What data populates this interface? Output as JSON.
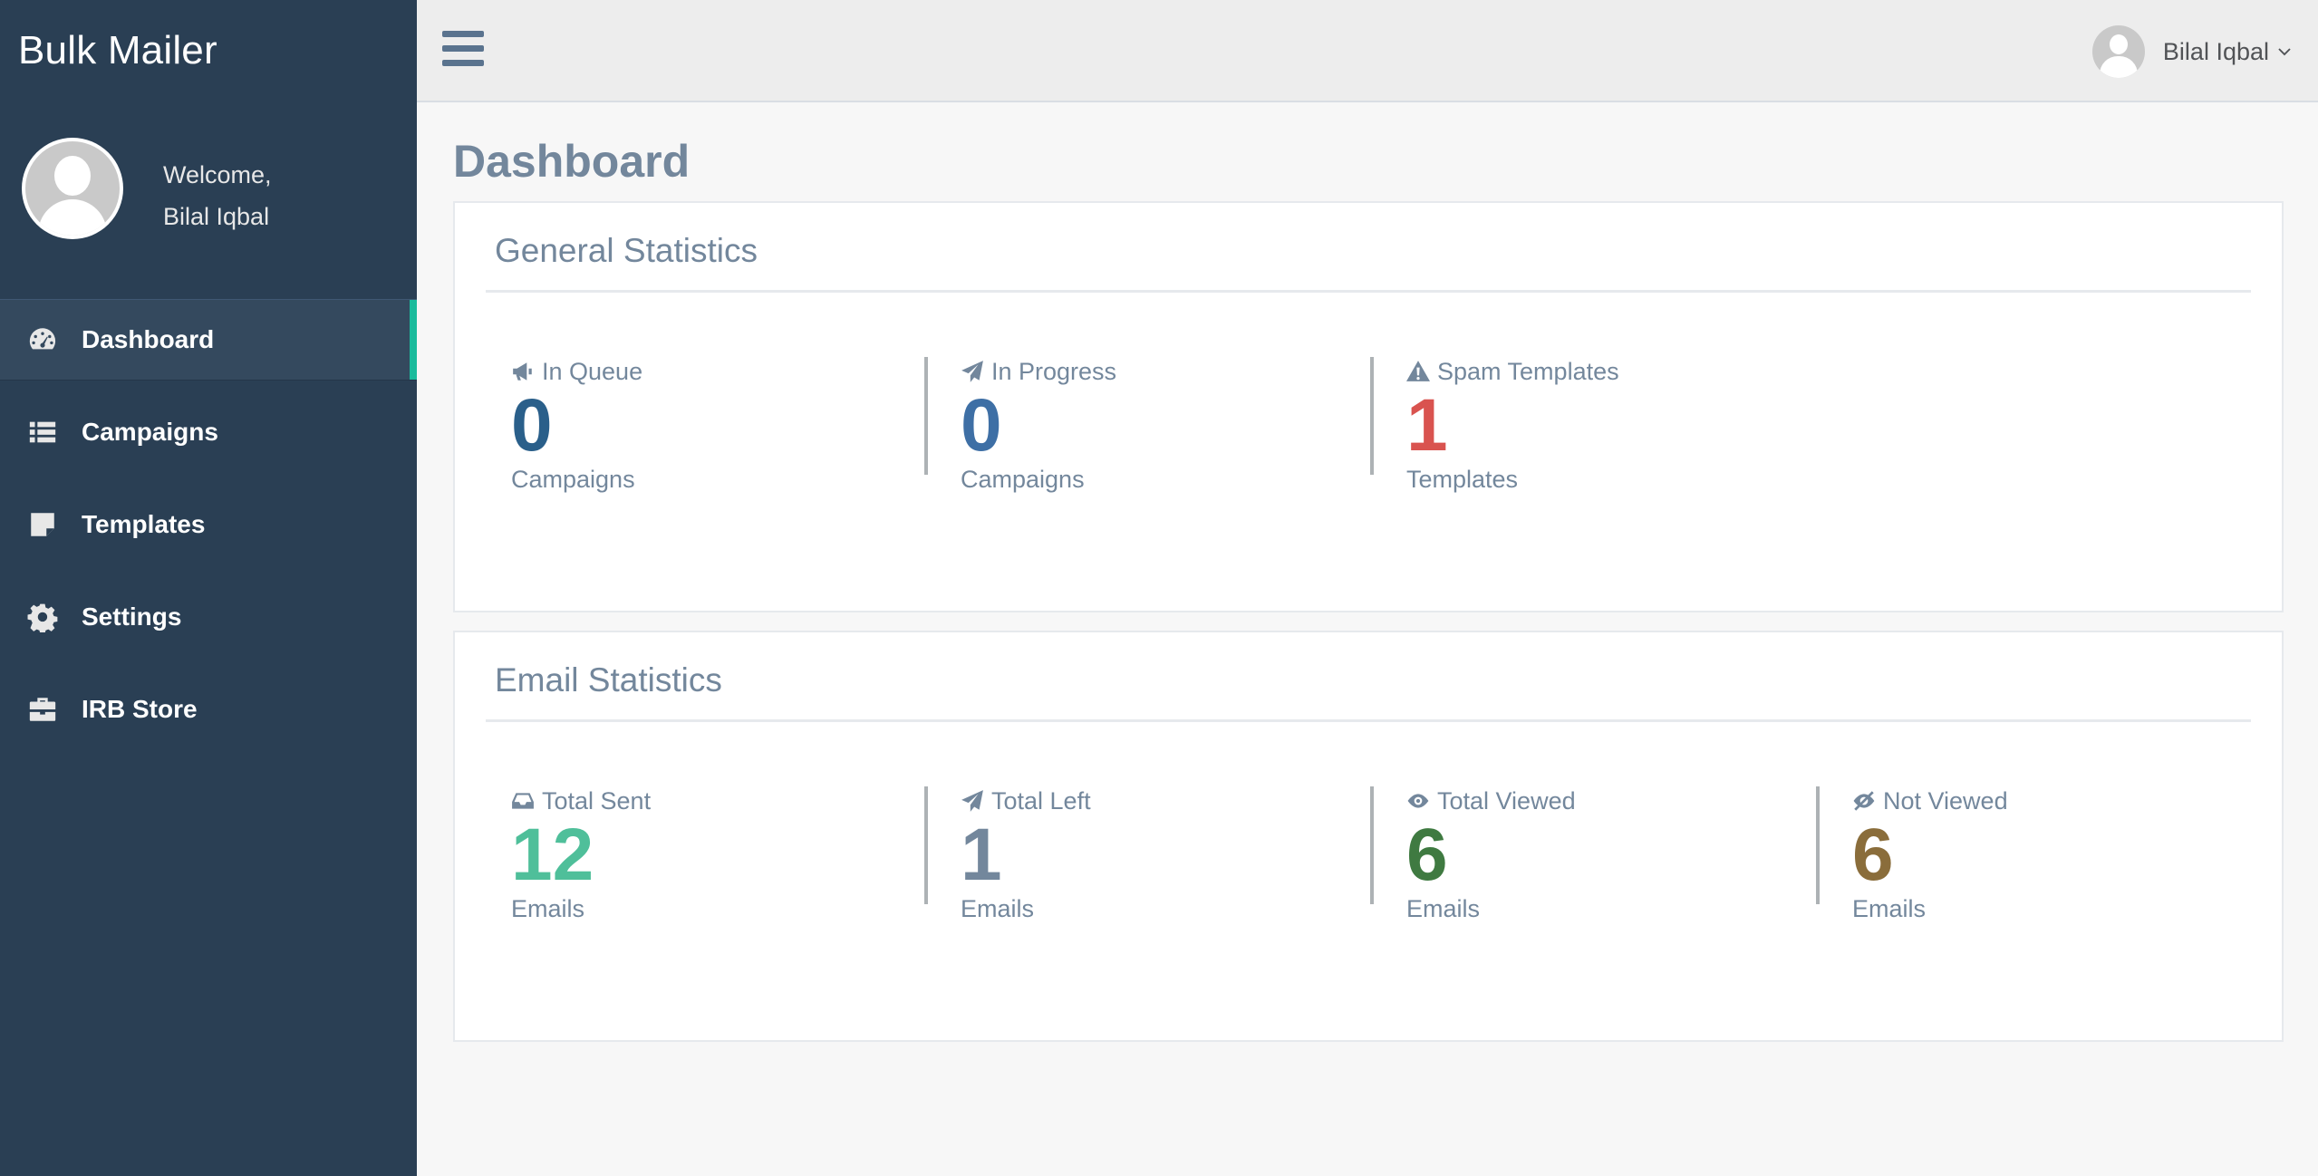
{
  "sidebar": {
    "brand": "Bulk Mailer",
    "welcome": "Welcome,",
    "user_name": "Bilal Iqbal",
    "items": [
      {
        "label": "Dashboard",
        "icon": "dashboard-icon",
        "active": true
      },
      {
        "label": "Campaigns",
        "icon": "list-icon",
        "active": false
      },
      {
        "label": "Templates",
        "icon": "sticky-note-icon",
        "active": false
      },
      {
        "label": "Settings",
        "icon": "gear-icon",
        "active": false
      },
      {
        "label": "IRB Store",
        "icon": "briefcase-icon",
        "active": false
      }
    ]
  },
  "topnav": {
    "user_name": "Bilal Iqbal"
  },
  "main": {
    "title": "Dashboard",
    "general": {
      "title": "General Statistics",
      "stats": [
        {
          "label": "In Queue",
          "value": "0",
          "sub": "Campaigns",
          "icon": "bullhorn-icon",
          "color": "#2a5f8a"
        },
        {
          "label": "In Progress",
          "value": "0",
          "sub": "Campaigns",
          "icon": "paper-plane-icon",
          "color": "#3e6fa5"
        },
        {
          "label": "Spam Templates",
          "value": "1",
          "sub": "Templates",
          "icon": "warning-icon",
          "color": "#d9534f"
        }
      ]
    },
    "email": {
      "title": "Email Statistics",
      "stats": [
        {
          "label": "Total Sent",
          "value": "12",
          "sub": "Emails",
          "icon": "inbox-icon",
          "color": "#4fbf9a"
        },
        {
          "label": "Total Left",
          "value": "1",
          "sub": "Emails",
          "icon": "paper-plane-icon",
          "color": "#73879c"
        },
        {
          "label": "Total Viewed",
          "value": "6",
          "sub": "Emails",
          "icon": "eye-icon",
          "color": "#3f7a41"
        },
        {
          "label": "Not Viewed",
          "value": "6",
          "sub": "Emails",
          "icon": "eye-slash-icon",
          "color": "#8a6d3b"
        }
      ]
    }
  }
}
